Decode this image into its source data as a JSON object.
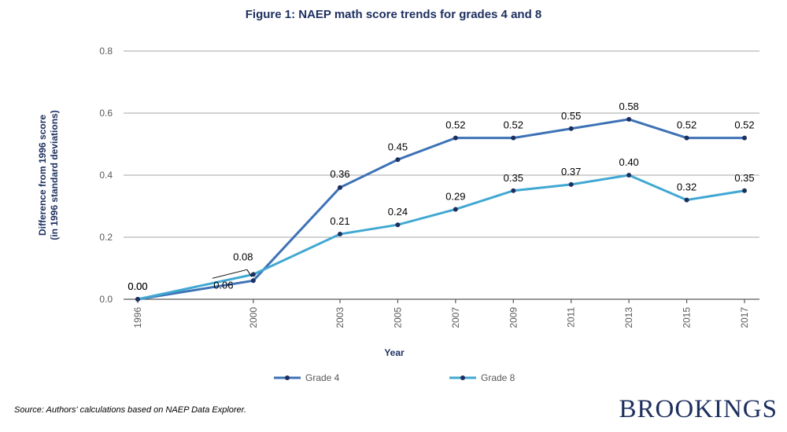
{
  "title": "Figure 1: NAEP math score trends for grades 4 and 8",
  "source_note": "Source: Authors' calculations based on NAEP Data Explorer.",
  "brand": "BROOKINGS",
  "colors": {
    "title": "#1d2f5f",
    "grade4": "#3d72b5",
    "grade8": "#41a8d2",
    "marker": "#1d2f5f"
  },
  "chart_data": {
    "type": "line",
    "title": "Figure 1: NAEP math score trends for grades 4 and 8",
    "xlabel": "Year",
    "ylabel": [
      "Difference from 1996 score",
      "(in 1996 standard deviations)"
    ],
    "x": [
      1996,
      2000,
      2003,
      2005,
      2007,
      2009,
      2011,
      2013,
      2015,
      2017
    ],
    "x_tick_labels": [
      "1996",
      "2000",
      "2003",
      "2005",
      "2007",
      "2009",
      "2011",
      "2013",
      "2015",
      "2017"
    ],
    "ylim": [
      0,
      0.8
    ],
    "y_ticks": [
      0,
      0.2,
      0.4,
      0.6,
      0.8
    ],
    "y_tick_labels": [
      "0.0",
      "0.2",
      "0.4",
      "0.6",
      "0.8"
    ],
    "grid": true,
    "legend_position": "bottom",
    "series": [
      {
        "name": "Grade 4",
        "color": "#3d72b5",
        "values": [
          0.0,
          0.06,
          0.36,
          0.45,
          0.52,
          0.52,
          0.55,
          0.58,
          0.52,
          0.52
        ],
        "labels": [
          "0.00",
          "0.06",
          "0.36",
          "0.45",
          "0.52",
          "0.52",
          "0.55",
          "0.58",
          "0.52",
          "0.52"
        ]
      },
      {
        "name": "Grade 8",
        "color": "#41a8d2",
        "values": [
          0.0,
          0.08,
          0.21,
          0.24,
          0.29,
          0.35,
          0.37,
          0.4,
          0.32,
          0.35
        ],
        "labels": [
          "0.00",
          "0.08",
          "0.21",
          "0.24",
          "0.29",
          "0.35",
          "0.37",
          "0.40",
          "0.32",
          "0.35"
        ]
      }
    ]
  }
}
